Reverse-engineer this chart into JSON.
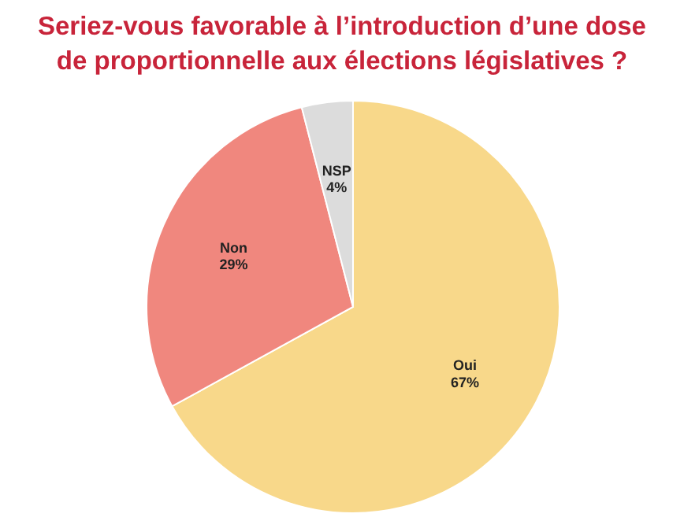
{
  "chart_data": {
    "type": "pie",
    "title": "Seriez-vous favorable à l’introduction d’une dose de proportionnelle aux élections législatives ?",
    "categories": [
      "Oui",
      "Non",
      "NSP"
    ],
    "values": [
      67,
      29,
      4
    ],
    "value_labels": [
      "67%",
      "29%",
      "4%"
    ],
    "colors": [
      "#f8d88a",
      "#f0877e",
      "#dcdcdc"
    ],
    "legend": false
  }
}
